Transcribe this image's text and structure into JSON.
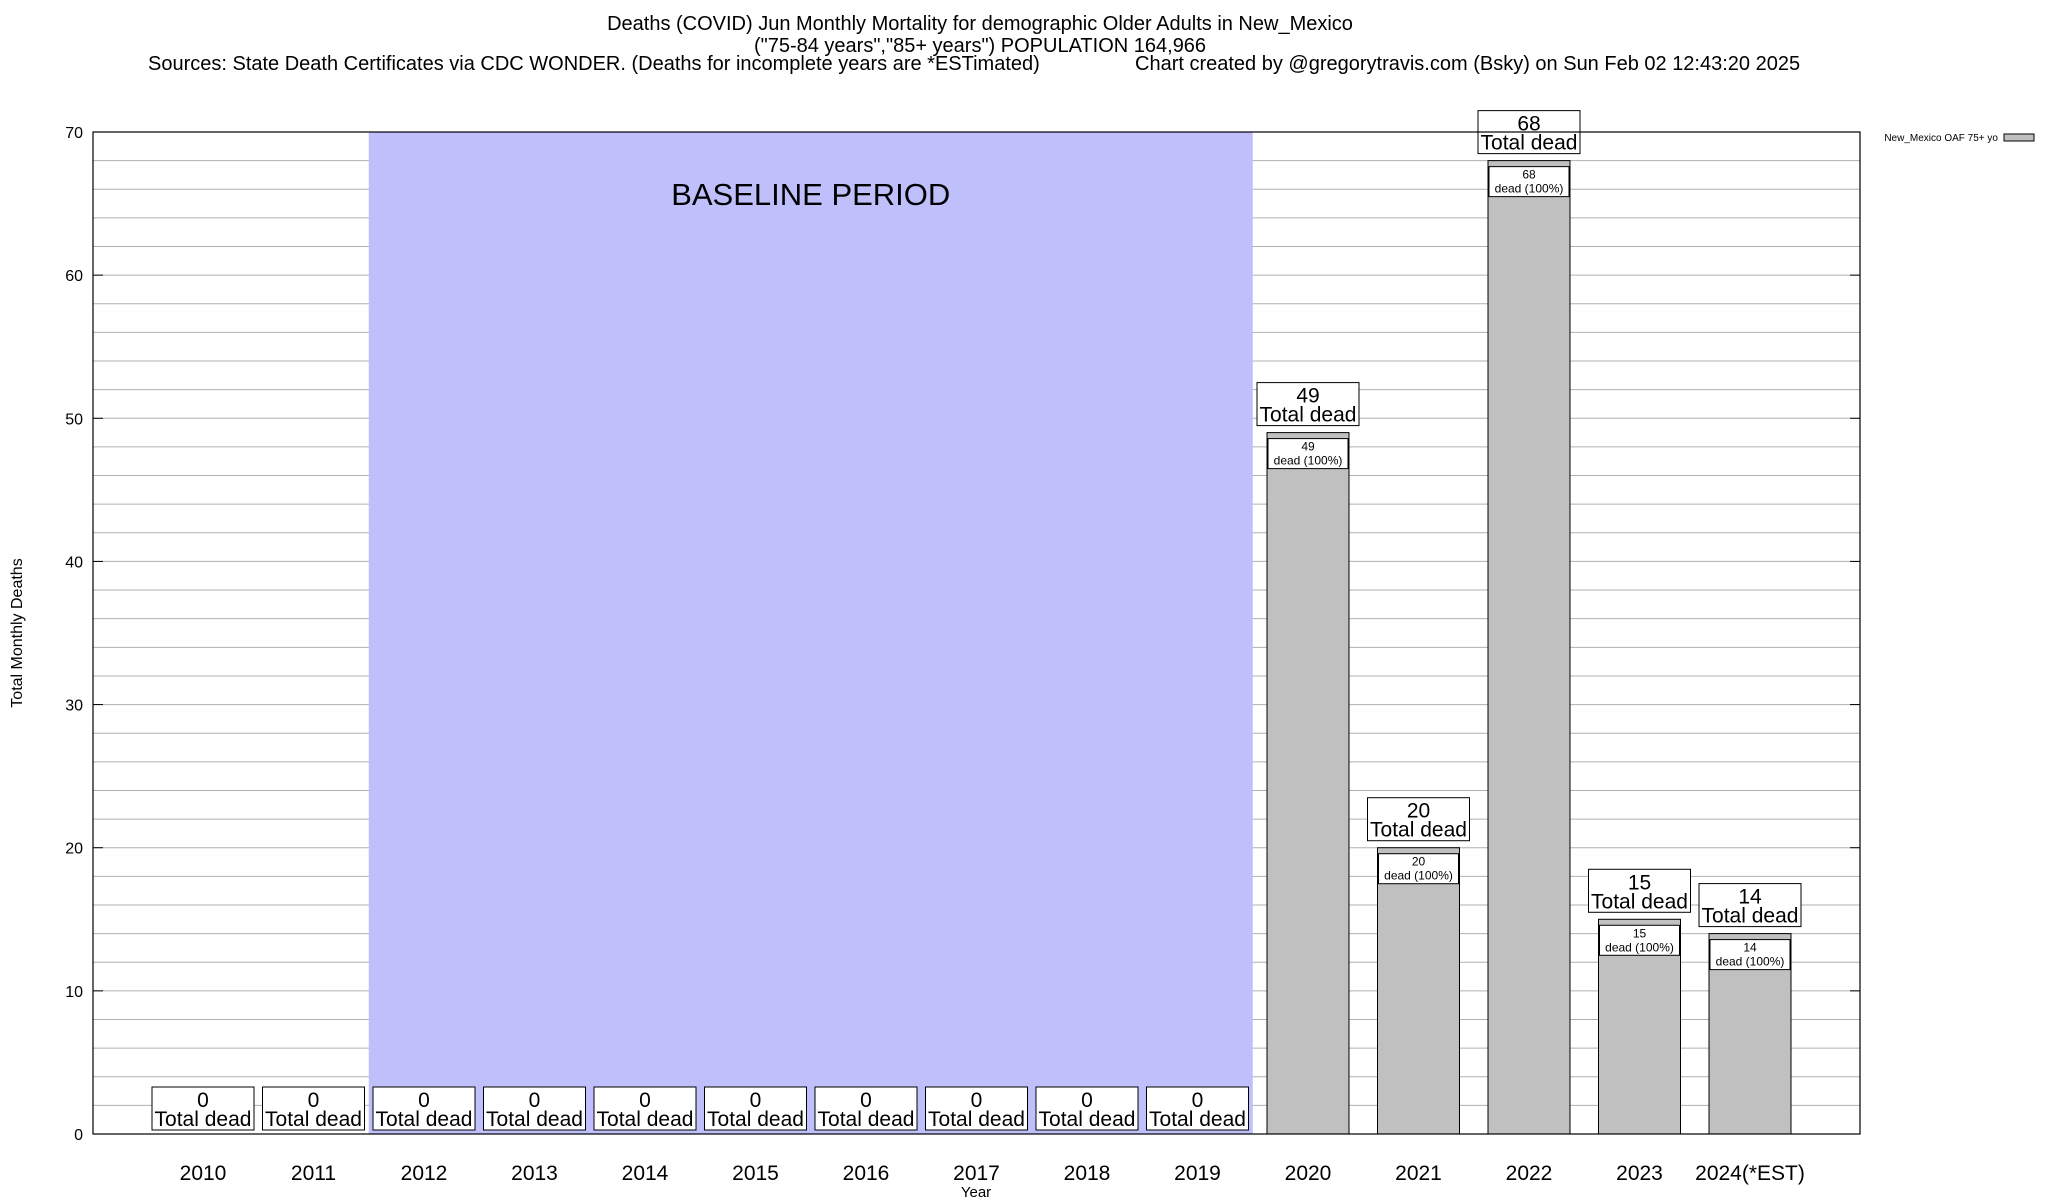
{
  "header": {
    "title": "Deaths (COVID) Jun Monthly Mortality for demographic Older Adults in New_Mexico",
    "subtitle": "(\"75-84 years\",\"85+ years\") POPULATION 164,966",
    "sources": "Sources: State Death Certificates via CDC WONDER. (Deaths for incomplete years are *ESTimated)",
    "credit": "Chart created by @gregorytravis.com (Bsky) on Sun Feb 02 12:43:20 2025"
  },
  "colors": {
    "bar_fill": "#c0c0c0",
    "baseline_fill": "#bfbffc",
    "grid": "#b0b0b0"
  },
  "chart_data": {
    "type": "bar",
    "title": "Deaths (COVID) Jun Monthly Mortality for demographic Older Adults in New_Mexico",
    "xlabel": "Year",
    "ylabel": "Total Monthly Deaths",
    "ylim": [
      0,
      70
    ],
    "yticks": [
      0,
      10,
      20,
      30,
      40,
      50,
      60,
      70
    ],
    "grid": true,
    "legend_position": "top-right",
    "categories": [
      "2010",
      "2011",
      "2012",
      "2013",
      "2014",
      "2015",
      "2016",
      "2017",
      "2018",
      "2019",
      "2020",
      "2021",
      "2022",
      "2023",
      "2024(*EST)"
    ],
    "series": [
      {
        "name": "New_Mexico OAF 75+ yo",
        "values": [
          0,
          0,
          0,
          0,
          0,
          0,
          0,
          0,
          0,
          0,
          49,
          20,
          68,
          15,
          14
        ]
      }
    ],
    "total_label_suffix": "Total dead",
    "segment_label_suffix": "dead (100%)",
    "annotations": [
      {
        "text": "BASELINE PERIOD",
        "from_category": "2012",
        "to_category": "2019"
      }
    ]
  }
}
